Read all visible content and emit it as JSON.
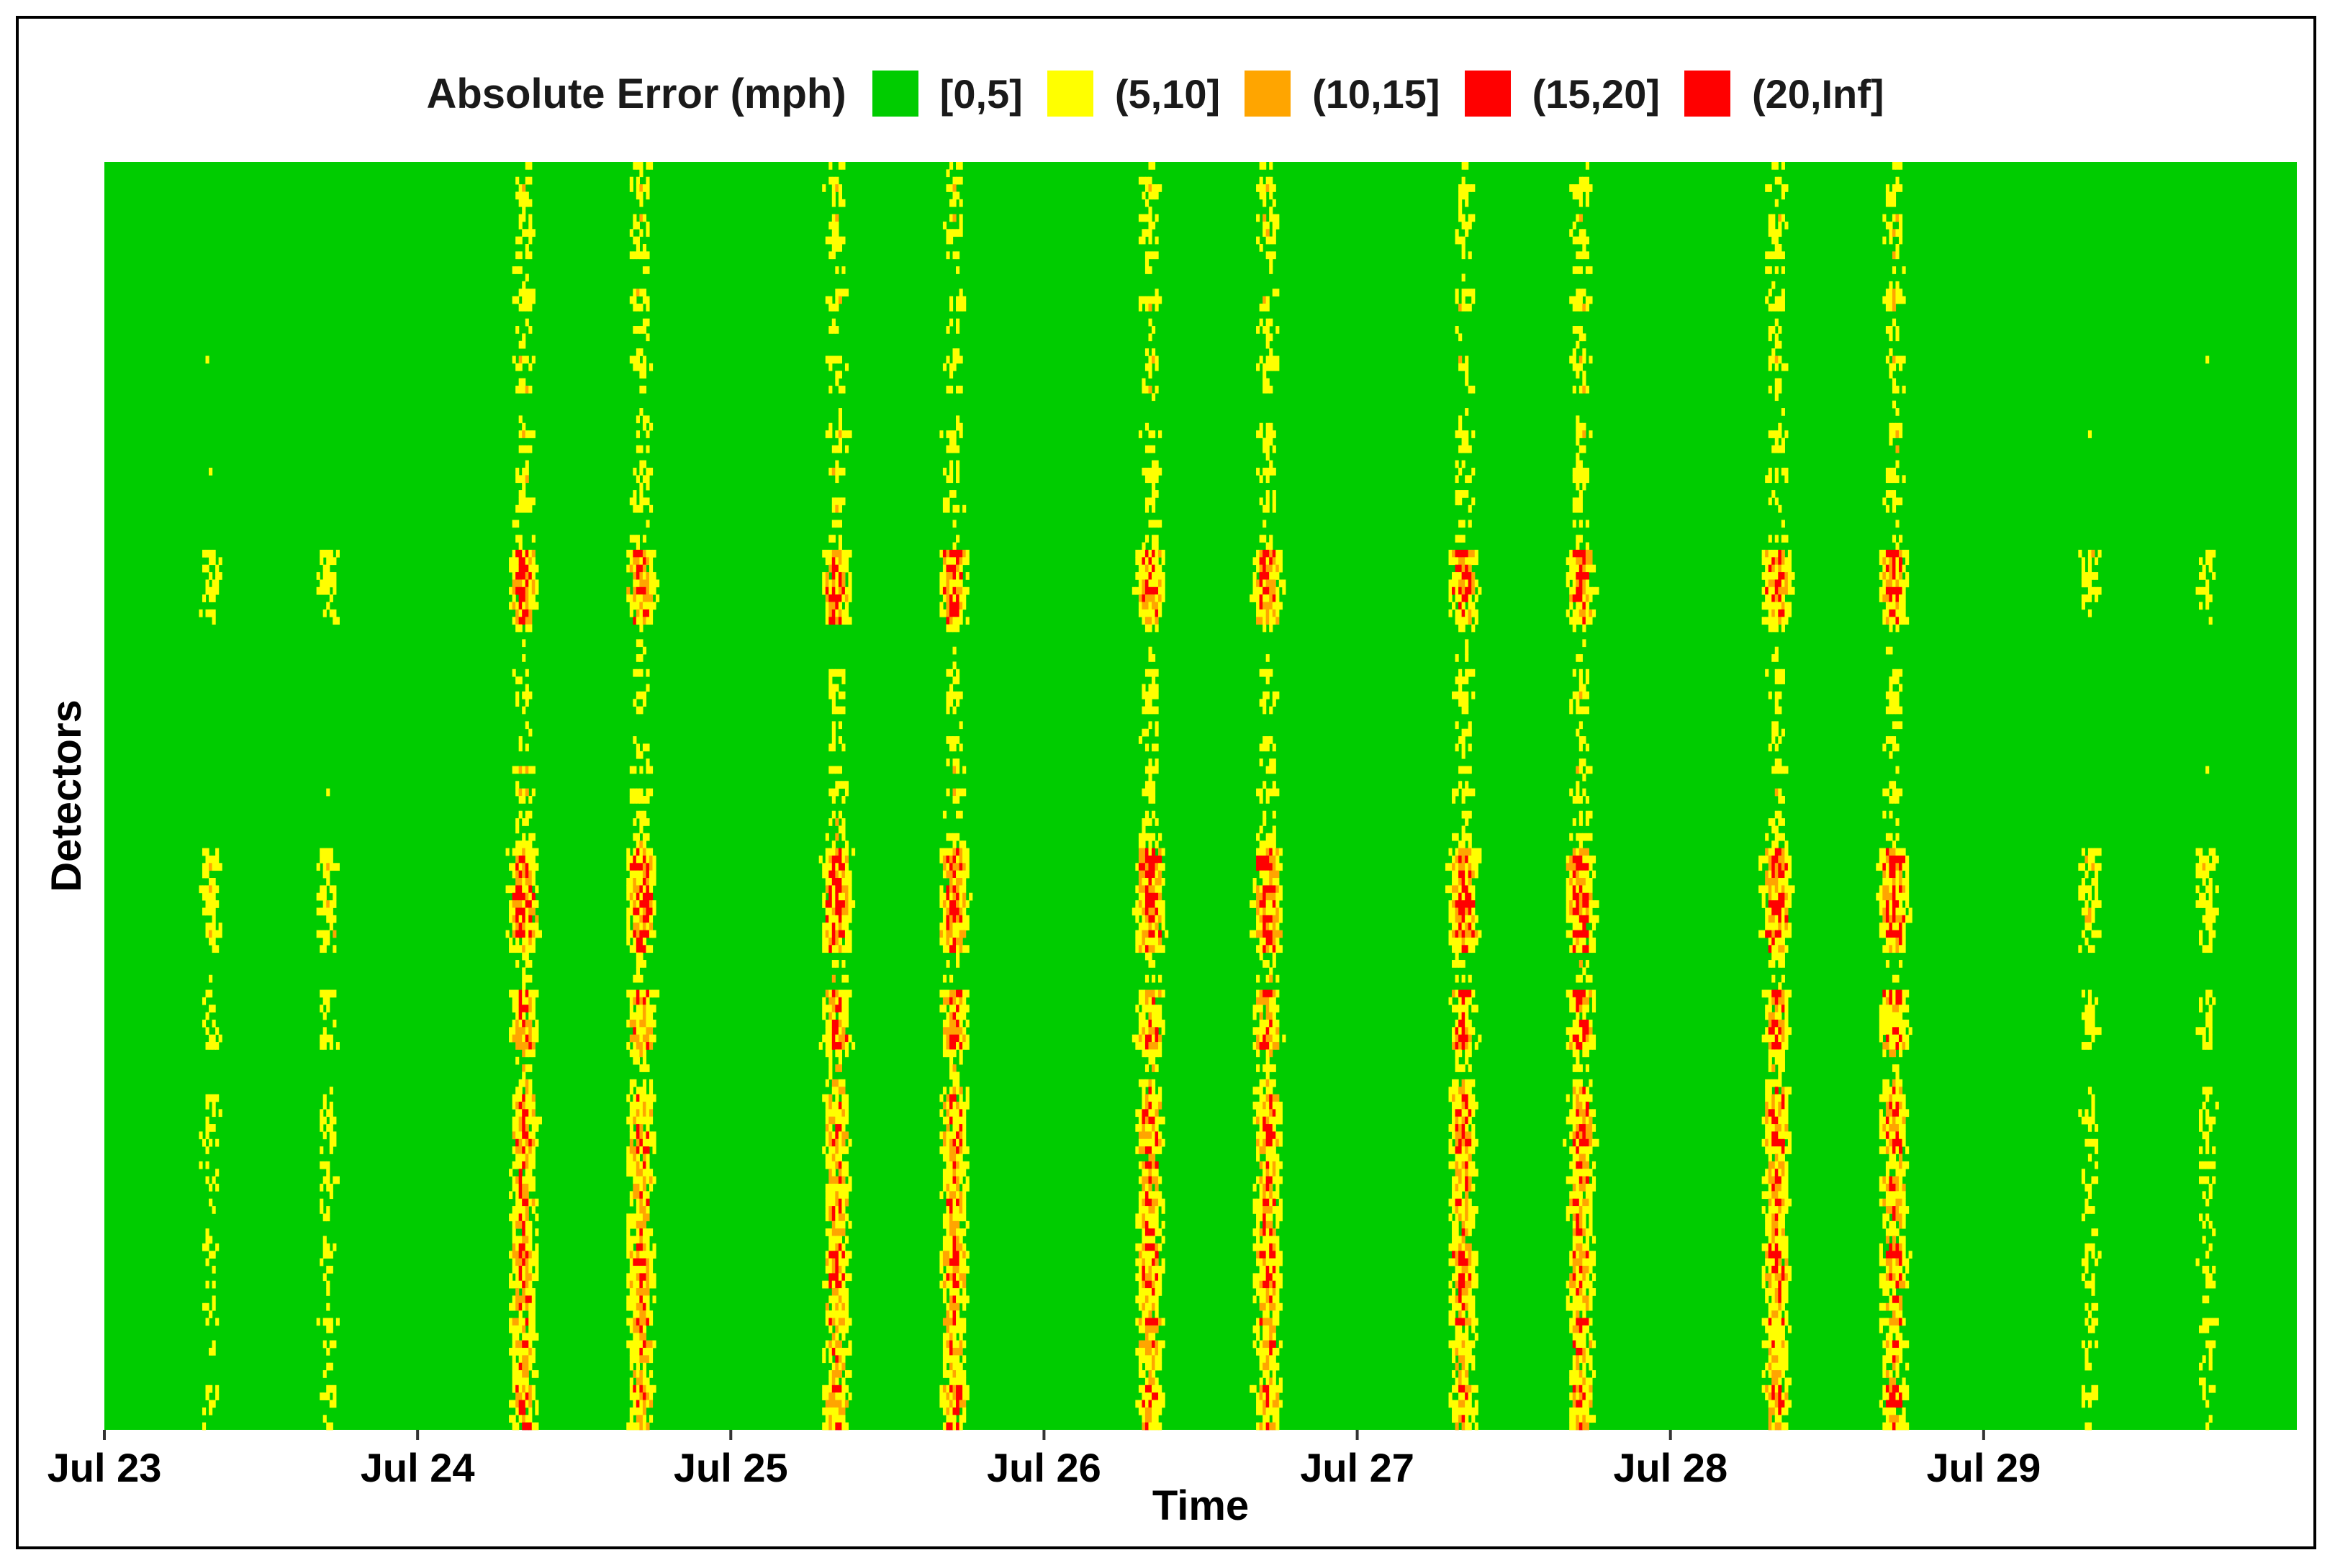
{
  "legend": {
    "title": "Absolute Error (mph)",
    "items": [
      {
        "label": "[0,5]",
        "color": "#00CC00"
      },
      {
        "label": "(5,10]",
        "color": "#FFFF00"
      },
      {
        "label": "(10,15]",
        "color": "#FFA500"
      },
      {
        "label": "(15,20]",
        "color": "#FF0000"
      },
      {
        "label": "(20,Inf]",
        "color": "#FF0000"
      }
    ]
  },
  "chart_data": {
    "type": "heatmap",
    "title": "",
    "xlabel": "Time",
    "ylabel": "Detectors",
    "x_ticks": [
      "Jul 23",
      "Jul 24",
      "Jul 25",
      "Jul 26",
      "Jul 27",
      "Jul 28",
      "Jul 29"
    ],
    "x_range": [
      "Jul 23",
      "Jul 30"
    ],
    "y_tick_labels": "none",
    "grid": false,
    "legend_position": "top",
    "color_bins": [
      "[0,5]",
      "(5,10]",
      "(10,15]",
      "(15,20]",
      "(20,Inf]"
    ],
    "dominant_bin": "[0,5]",
    "daily_high_error_hours": [
      "08:00",
      "17:00"
    ]
  }
}
